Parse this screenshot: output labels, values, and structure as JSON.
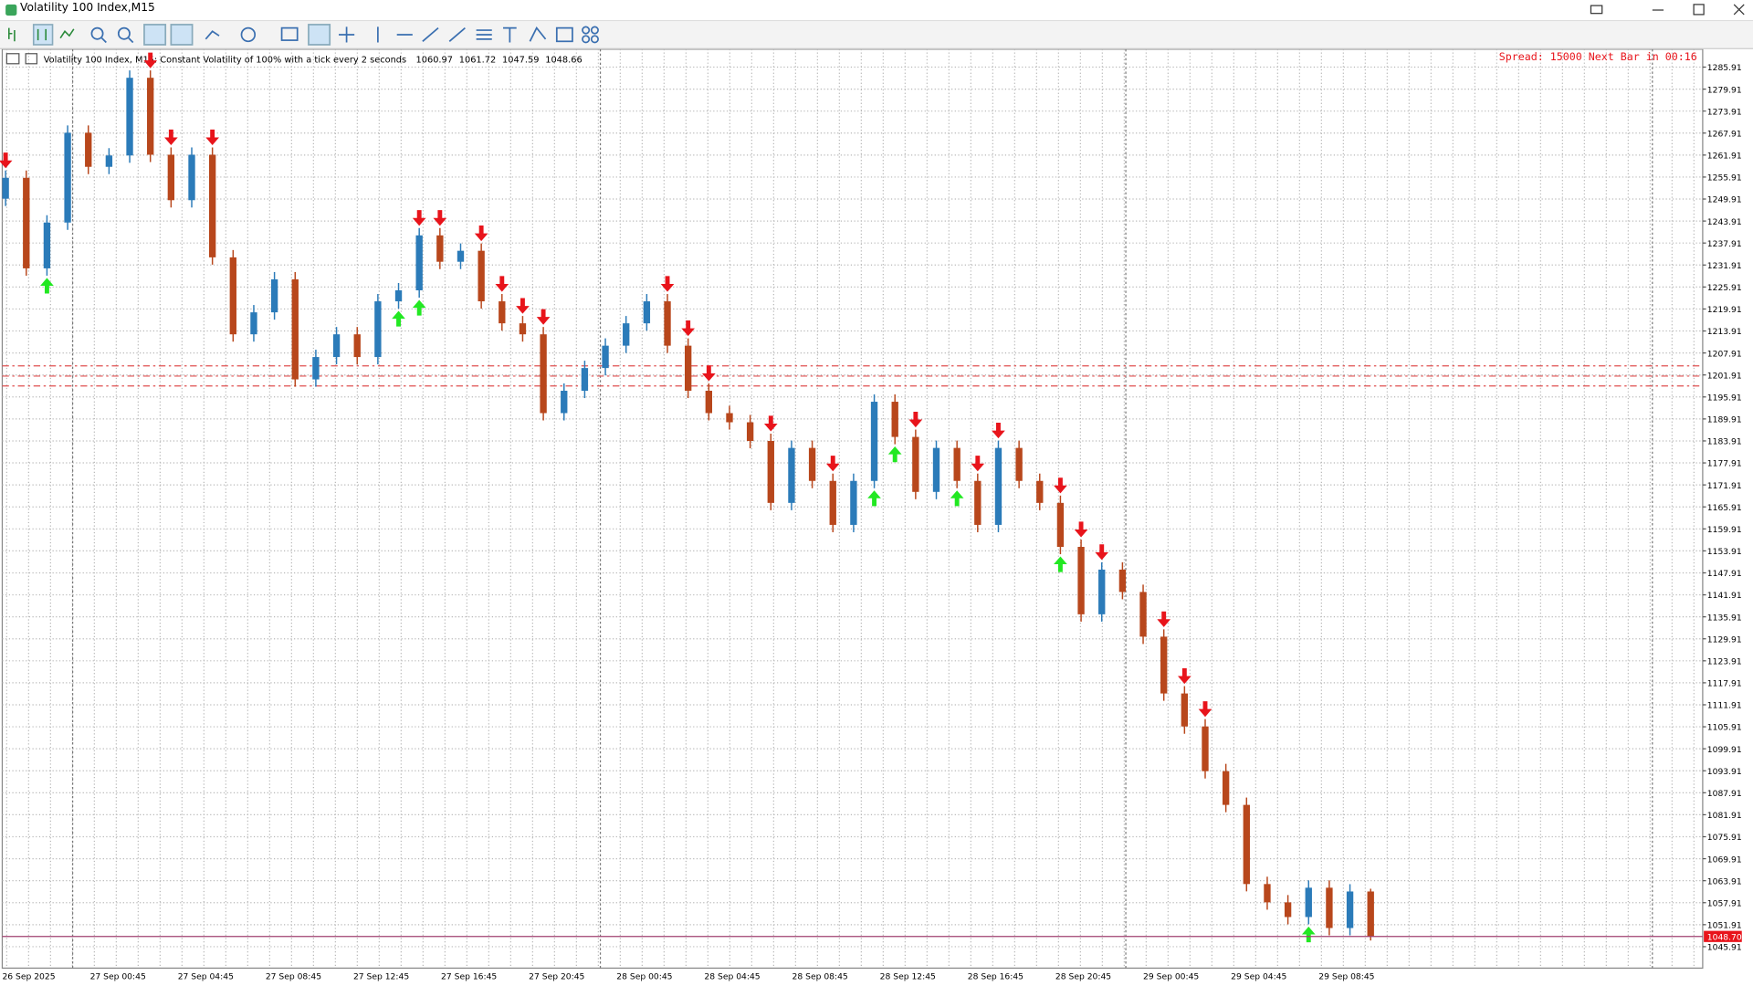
{
  "window_title": "Volatility 100 Index,M15",
  "chart_info": "Volatility 100 Index, M15:  Constant Volatility of 100% with a tick every 2 seconds",
  "status_text": "Spread: 15000 Next Bar in 00:16",
  "chart_data": {
    "type": "candlestick",
    "open": [
      1250,
      1255.7,
      1231,
      1243.5,
      1268,
      1258.7,
      1261.8,
      1283,
      1262,
      1249.6,
      1262,
      1234,
      1213,
      1219,
      1228,
      1200.7,
      1206.8,
      1213,
      1206.8,
      1222,
      1225,
      1240,
      1232.8,
      1235.8,
      1222,
      1216,
      1213,
      1191.5,
      1197.6,
      1203.8,
      1209.9,
      1216,
      1222,
      1209.9,
      1197.6,
      1191.5,
      1189,
      1183.9,
      1167,
      1182,
      1173,
      1161,
      1173,
      1194.6,
      1185,
      1170,
      1182,
      1173,
      1161,
      1182,
      1173,
      1167,
      1155,
      1136.6,
      1148.8,
      1142.7,
      1130.5,
      1115,
      1106,
      1093.8,
      1084.6,
      1063,
      1058,
      1054,
      1062,
      1051,
      1060.97
    ],
    "high": [
      1257.7,
      1257.7,
      1245.5,
      1270,
      1270,
      1263.8,
      1285,
      1285,
      1264,
      1264,
      1264,
      1236,
      1221,
      1230,
      1230,
      1208.8,
      1215,
      1215,
      1224,
      1227,
      1242,
      1242,
      1237.8,
      1237.8,
      1224,
      1218,
      1215,
      1199.6,
      1205.8,
      1211.9,
      1218,
      1224,
      1224,
      1211.9,
      1199.6,
      1193.5,
      1191,
      1185.9,
      1184,
      1184,
      1175,
      1175,
      1196.6,
      1196.6,
      1187,
      1184,
      1184,
      1175,
      1184,
      1184,
      1175,
      1169,
      1157,
      1150.8,
      1150.8,
      1144.7,
      1132.5,
      1117,
      1108,
      1095.8,
      1086.6,
      1065,
      1060,
      1064,
      1064,
      1062.97,
      1061.72
    ],
    "low": [
      1248,
      1229,
      1229,
      1241.5,
      1256.7,
      1256.7,
      1259.8,
      1260,
      1247.6,
      1247.6,
      1232,
      1211,
      1211,
      1217,
      1198.7,
      1198.7,
      1204.8,
      1204.8,
      1204.8,
      1220,
      1223,
      1230.8,
      1230.8,
      1220,
      1214,
      1211,
      1189.5,
      1189.5,
      1195.6,
      1201.8,
      1207.9,
      1214,
      1207.9,
      1195.6,
      1189.5,
      1187,
      1181.9,
      1165,
      1165,
      1171,
      1159,
      1159,
      1171,
      1183,
      1168,
      1168,
      1171,
      1159,
      1159,
      1171,
      1165,
      1153,
      1134.6,
      1134.6,
      1140.7,
      1128.5,
      1113,
      1104,
      1091.8,
      1082.6,
      1061,
      1056,
      1052,
      1052,
      1049,
      1049,
      1047.59
    ],
    "close": [
      1255.7,
      1231,
      1243.5,
      1268,
      1258.7,
      1261.8,
      1283,
      1262,
      1249.6,
      1262,
      1234,
      1213,
      1219,
      1228,
      1200.7,
      1206.8,
      1213,
      1206.8,
      1222,
      1225,
      1240,
      1232.8,
      1235.8,
      1222,
      1216,
      1213,
      1191.5,
      1197.6,
      1203.8,
      1209.9,
      1216,
      1222,
      1209.9,
      1197.6,
      1191.5,
      1189,
      1183.9,
      1167,
      1182,
      1173,
      1161,
      1173,
      1194.6,
      1185,
      1170,
      1182,
      1173,
      1161,
      1182,
      1173,
      1167,
      1155,
      1136.6,
      1148.8,
      1142.7,
      1130.5,
      1115,
      1106,
      1093.8,
      1084.6,
      1063,
      1058,
      1054,
      1062,
      1051,
      1060.97,
      1048.66
    ],
    "up_color": "#2b7bb9",
    "down_color": "#b8471c",
    "sell_signals": [
      0,
      7,
      8,
      10,
      20,
      21,
      23,
      24,
      25,
      26,
      32,
      33,
      34,
      37,
      40,
      44,
      47,
      48,
      51,
      52,
      53,
      56,
      57,
      58
    ],
    "buy_signals": [
      2,
      19,
      20,
      42,
      43,
      46,
      51,
      63
    ],
    "sell_color": "#e8141b",
    "buy_color": "#22e822",
    "levels": [
      1204.4,
      1201.6,
      1198.9
    ],
    "level_color": "#e05050",
    "price_line": {
      "value": 1048.7,
      "label": "1048.70"
    },
    "ylim": [
      1040.06,
      1290.8
    ],
    "yticks": [
      1285.91,
      1279.91,
      1273.91,
      1267.91,
      1261.91,
      1255.91,
      1249.91,
      1243.91,
      1237.91,
      1231.91,
      1225.91,
      1219.91,
      1213.91,
      1207.91,
      1201.91,
      1195.91,
      1189.91,
      1183.91,
      1177.91,
      1171.91,
      1165.91,
      1159.91,
      1153.91,
      1147.91,
      1141.91,
      1135.91,
      1129.91,
      1123.91,
      1117.91,
      1111.91,
      1105.91,
      1099.91,
      1093.91,
      1087.91,
      1081.91,
      1075.91,
      1069.91,
      1063.91,
      1057.91,
      1051.91,
      1045.91
    ],
    "x_labels": [
      "26 Sep 2025",
      "27 Sep 00:45",
      "27 Sep 04:45",
      "27 Sep 08:45",
      "27 Sep 12:45",
      "27 Sep 16:45",
      "27 Sep 20:45",
      "28 Sep 00:45",
      "28 Sep 04:45",
      "28 Sep 08:45",
      "28 Sep 12:45",
      "28 Sep 16:45",
      "28 Sep 20:45",
      "29 Sep 00:45",
      "29 Sep 04:45",
      "29 Sep 08:45"
    ],
    "grid": true
  }
}
